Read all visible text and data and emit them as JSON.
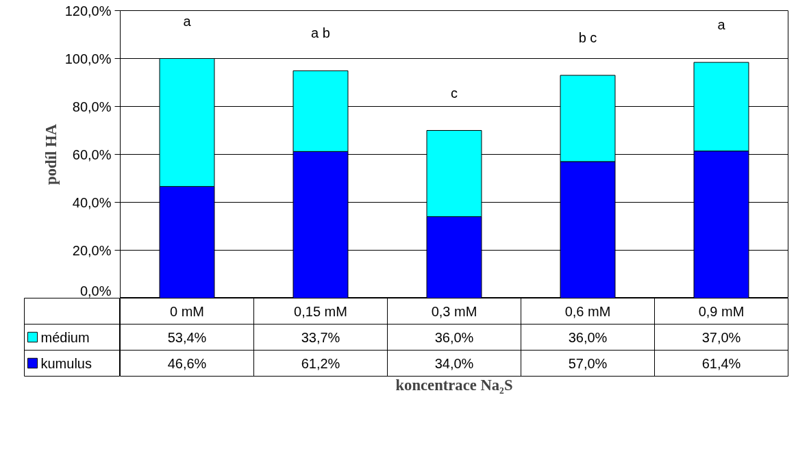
{
  "chart_data": {
    "type": "bar",
    "stacked": true,
    "xlabel": "koncentrace Na₂S",
    "ylabel": "podíl HA",
    "categories": [
      "0 mM",
      "0,15 mM",
      "0,3 mM",
      "0,6 mM",
      "0,9 mM"
    ],
    "series": [
      {
        "name": "kumulus",
        "color": "#0000ff",
        "values": [
          46.6,
          61.2,
          34.0,
          57.0,
          61.4
        ],
        "value_labels": [
          "46,6%",
          "61,2%",
          "34,0%",
          "57,0%",
          "61,4%"
        ]
      },
      {
        "name": "médium",
        "color": "#00ffff",
        "values": [
          53.4,
          33.7,
          36.0,
          36.0,
          37.0
        ],
        "value_labels": [
          "53,4%",
          "33,7%",
          "36,0%",
          "36,0%",
          "37,0%"
        ]
      }
    ],
    "ylim": [
      0,
      120
    ],
    "yticks": [
      {
        "value": 0,
        "label": "0,0%"
      },
      {
        "value": 20,
        "label": "20,0%"
      },
      {
        "value": 40,
        "label": "40,0%"
      },
      {
        "value": 60,
        "label": "60,0%"
      },
      {
        "value": 80,
        "label": "80,0%"
      },
      {
        "value": 100,
        "label": "100,0%"
      },
      {
        "value": 120,
        "label": "120,0%"
      }
    ],
    "grid": "y",
    "legend": "bottom",
    "annotations": [
      "a",
      "a b",
      "c",
      "b c",
      "a"
    ]
  }
}
